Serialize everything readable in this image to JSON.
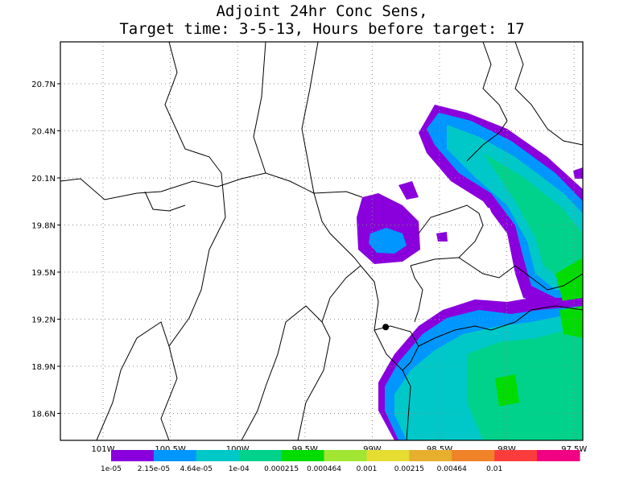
{
  "title_line1": "Adjoint 24hr Conc Sens,",
  "title_line2": "Target time: 3-5-13, Hours before target: 17",
  "lat_labels": [
    "20.7N",
    "20.4N",
    "20.1N",
    "19.8N",
    "19.5N",
    "19.2N",
    "18.9N",
    "18.6N"
  ],
  "lon_labels": [
    "101W",
    "100.5W",
    "100W",
    "99.5W",
    "99W",
    "98.5W",
    "98W",
    "97.5W"
  ],
  "colorbar": {
    "colors": [
      "#8a00dc",
      "#0096ff",
      "#00c8c8",
      "#00d28c",
      "#00dc00",
      "#a0e632",
      "#e6dc32",
      "#e6af2d",
      "#f08228",
      "#fa3c3c",
      "#f00082"
    ],
    "labels": [
      "1e-05",
      "2.15e-05",
      "4.64e-05",
      "1e-04",
      "0.000215",
      "0.000464",
      "0.001",
      "0.00215",
      "0.00464",
      "0.01"
    ]
  },
  "target_marker": {
    "lon": -98.9,
    "lat": 19.15
  }
}
